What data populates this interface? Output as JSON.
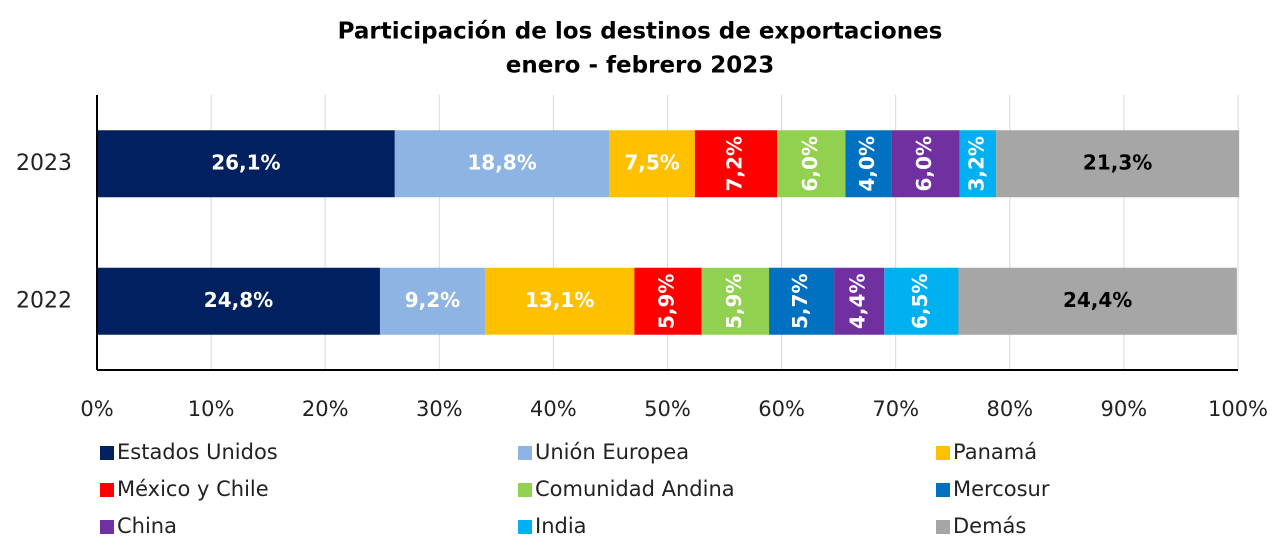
{
  "chart_data": {
    "type": "stacked_barh",
    "title": [
      "Participación de los destinos de exportaciones",
      "enero - febrero 2023"
    ],
    "categories": [
      "2023",
      "2022"
    ],
    "series": [
      {
        "name": "Estados Unidos",
        "color": "#002060",
        "label_color": "#ffffff",
        "values": [
          26.1,
          24.8
        ],
        "value_labels": [
          "26,1%",
          "24,8%"
        ]
      },
      {
        "name": "Unión Europea",
        "color": "#8eb4e3",
        "label_color": "#ffffff",
        "values": [
          18.8,
          9.2
        ],
        "value_labels": [
          "18,8%",
          "9,2%"
        ]
      },
      {
        "name": "Panamá",
        "color": "#ffc000",
        "label_color": "#ffffff",
        "values": [
          7.5,
          13.1
        ],
        "value_labels": [
          "7,5%",
          "13,1%"
        ]
      },
      {
        "name": "México y Chile",
        "color": "#ff0000",
        "label_color": "#ffffff",
        "values": [
          7.2,
          5.9
        ],
        "value_labels": [
          "7,2%",
          "5,9%"
        ]
      },
      {
        "name": "Comunidad Andina",
        "color": "#92d050",
        "label_color": "#ffffff",
        "values": [
          6.0,
          5.9
        ],
        "value_labels": [
          "6,0%",
          "5,9%"
        ]
      },
      {
        "name": "Mercosur",
        "color": "#0070c0",
        "label_color": "#ffffff",
        "values": [
          4.0,
          5.7
        ],
        "value_labels": [
          "4,0%",
          "5,7%"
        ]
      },
      {
        "name": "China",
        "color": "#7030a0",
        "label_color": "#ffffff",
        "values": [
          6.0,
          4.4
        ],
        "value_labels": [
          "6,0%",
          "4,4%"
        ]
      },
      {
        "name": "India",
        "color": "#00b0f0",
        "label_color": "#ffffff",
        "values": [
          3.2,
          6.5
        ],
        "value_labels": [
          "3,2%",
          "6,5%"
        ]
      },
      {
        "name": "Demás",
        "color": "#a6a6a6",
        "label_color": "#000000",
        "values": [
          21.3,
          24.4
        ],
        "value_labels": [
          "21,3%",
          "24,4%"
        ]
      }
    ],
    "xlim": [
      0,
      100
    ],
    "xticks": [
      {
        "value": 0,
        "label": "0%"
      },
      {
        "value": 10,
        "label": "10%"
      },
      {
        "value": 20,
        "label": "20%"
      },
      {
        "value": 30,
        "label": "30%"
      },
      {
        "value": 40,
        "label": "40%"
      },
      {
        "value": 50,
        "label": "50%"
      },
      {
        "value": 60,
        "label": "60%"
      },
      {
        "value": 70,
        "label": "70%"
      },
      {
        "value": 80,
        "label": "80%"
      },
      {
        "value": 90,
        "label": "90%"
      },
      {
        "value": 100,
        "label": "100%"
      }
    ],
    "grid": true,
    "legend": "bottom"
  }
}
